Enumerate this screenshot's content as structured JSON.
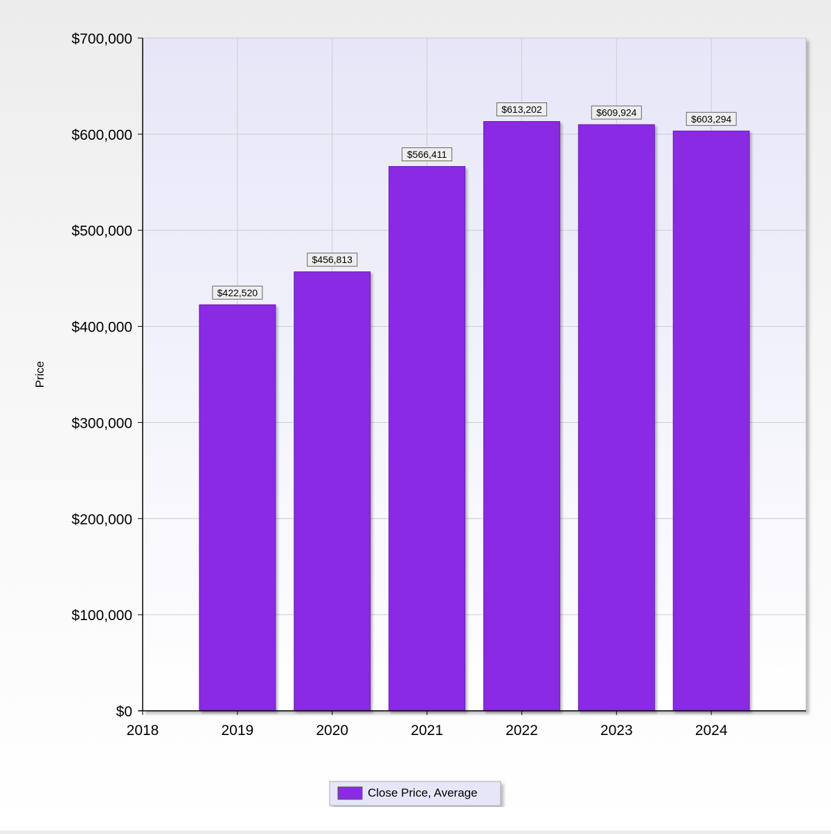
{
  "chart_data": {
    "type": "bar",
    "categories": [
      "2019",
      "2020",
      "2021",
      "2022",
      "2023",
      "2024"
    ],
    "x_axis_ticks": [
      "2018",
      "2019",
      "2020",
      "2021",
      "2022",
      "2023",
      "2024"
    ],
    "x_positions": [
      2019,
      2020,
      2021,
      2022,
      2023,
      2024
    ],
    "xlim": [
      2018,
      2025
    ],
    "series": [
      {
        "name": "Close Price, Average",
        "values": [
          422520,
          456813,
          566411,
          613202,
          609924,
          603294
        ],
        "data_labels": [
          "$422,520",
          "$456,813",
          "$566,411",
          "$613,202",
          "$609,924",
          "$603,294"
        ],
        "color": "#8a2be2"
      }
    ],
    "title": "",
    "xlabel": "",
    "ylabel": "Price",
    "ylim": [
      0,
      700000
    ],
    "y_ticks": [
      0,
      100000,
      200000,
      300000,
      400000,
      500000,
      600000,
      700000
    ],
    "y_tick_labels": [
      "$0",
      "$100,000",
      "$200,000",
      "$300,000",
      "$400,000",
      "$500,000",
      "$600,000",
      "$700,000"
    ],
    "grid": true,
    "legend_position": "bottom-center"
  },
  "colors": {
    "bar": "#8a2be2",
    "plot_bg_top": "#e6e6f8",
    "plot_bg_bottom": "#ffffff",
    "grid": "#cccccc",
    "axis": "#000000"
  }
}
